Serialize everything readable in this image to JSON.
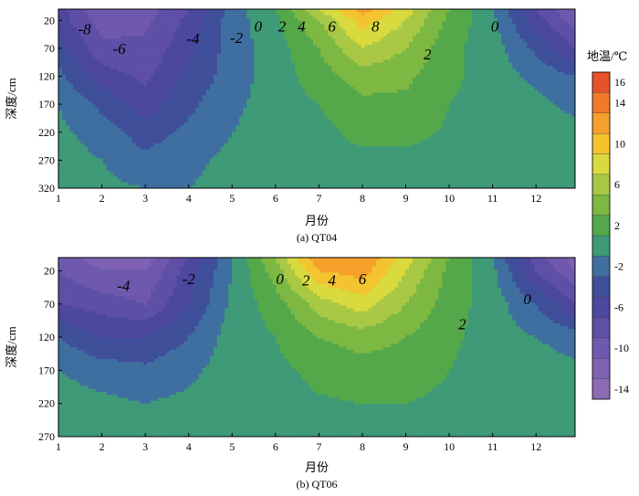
{
  "chart_data": [
    {
      "type": "contour",
      "caption": "(a) QT04",
      "xlabel": "月份",
      "ylabel": "深度/cm",
      "x_ticks": [
        "1",
        "2",
        "3",
        "4",
        "5",
        "6",
        "7",
        "8",
        "9",
        "10",
        "11",
        "12"
      ],
      "y_ticks": [
        "20",
        "70",
        "120",
        "170",
        "220",
        "270",
        "320"
      ],
      "xlim": [
        1,
        12.9
      ],
      "ylim": [
        320,
        0
      ],
      "y_inverted": true,
      "contour_labels": [
        "-8",
        "-6",
        "-4",
        "-2",
        "0",
        "2",
        "4",
        "6",
        "8",
        "0",
        "2"
      ],
      "x": [
        1,
        2,
        3,
        4,
        5,
        6,
        7,
        8,
        9,
        10,
        11,
        12,
        12.9
      ],
      "y": [
        0,
        20,
        70,
        120,
        170,
        220,
        270,
        320
      ],
      "z": [
        [
          -6,
          -11,
          -10,
          -7,
          -2,
          1,
          7,
          12,
          8,
          3,
          -1,
          -7,
          -11
        ],
        [
          -6,
          -10,
          -9.5,
          -6.5,
          -2,
          0.5,
          5,
          10,
          7,
          2.5,
          -0.5,
          -6,
          -10
        ],
        [
          -4,
          -8.5,
          -8.5,
          -5.5,
          -2,
          0,
          3,
          7,
          5,
          1.5,
          0,
          -3.5,
          -7
        ],
        [
          -2.5,
          -6,
          -7.5,
          -4.5,
          -2,
          0,
          2,
          4,
          3.5,
          1.5,
          0,
          -1.5,
          -3
        ],
        [
          -1,
          -3.5,
          -6,
          -3.5,
          -1.5,
          0,
          1,
          2.5,
          2.5,
          1,
          0,
          -0.5,
          -1.5
        ],
        [
          -0.5,
          -2,
          -4,
          -2.5,
          -1,
          0,
          0.5,
          1.5,
          1.5,
          0.8,
          0,
          0,
          -0.5
        ],
        [
          0,
          -1,
          -2.5,
          -1.5,
          -0.5,
          0,
          0.3,
          0.6,
          0.6,
          0.3,
          0,
          0,
          0
        ],
        [
          0,
          -0.5,
          -1,
          -1,
          -0.3,
          0,
          0.1,
          0.2,
          0.2,
          0.1,
          0,
          0,
          0
        ]
      ]
    },
    {
      "type": "contour",
      "caption": "(b) QT06",
      "xlabel": "月份",
      "ylabel": "深度/cm",
      "x_ticks": [
        "1",
        "2",
        "3",
        "4",
        "5",
        "6",
        "7",
        "8",
        "9",
        "10",
        "11",
        "12"
      ],
      "y_ticks": [
        "20",
        "70",
        "120",
        "170",
        "220",
        "270"
      ],
      "xlim": [
        1,
        12.9
      ],
      "ylim": [
        270,
        0
      ],
      "y_inverted": true,
      "contour_labels": [
        "-4",
        "-2",
        "0",
        "2",
        "4",
        "6",
        "2",
        "0"
      ],
      "x": [
        1,
        2,
        3,
        4,
        5,
        6,
        7,
        8,
        9,
        10,
        11,
        12,
        12.9
      ],
      "y": [
        0,
        20,
        70,
        120,
        170,
        220,
        270
      ],
      "z": [
        [
          -10,
          -12,
          -12,
          -7,
          -1,
          5,
          13,
          13,
          8,
          3,
          -1,
          -8,
          -12
        ],
        [
          -9,
          -11,
          -11,
          -6,
          -1,
          4,
          11,
          12,
          7,
          2.5,
          -0.5,
          -7,
          -11
        ],
        [
          -7,
          -8,
          -9,
          -5,
          -0.5,
          2,
          6,
          8,
          5,
          2,
          0,
          -3,
          -7
        ],
        [
          -3,
          -5,
          -5,
          -3,
          0,
          1,
          3,
          4,
          3,
          1.5,
          0,
          -1,
          -2
        ],
        [
          -1,
          -2,
          -2.5,
          -1.5,
          0,
          0.5,
          1.5,
          2,
          2,
          1,
          0,
          0,
          -0.5
        ],
        [
          0,
          -0.5,
          -1,
          -0.5,
          0,
          0.3,
          0.8,
          1,
          1,
          0.6,
          0,
          0,
          0
        ],
        [
          0,
          0,
          -0.3,
          0,
          0,
          0.1,
          0.3,
          0.4,
          0.4,
          0.2,
          0,
          0,
          0
        ]
      ]
    }
  ],
  "colorbar": {
    "title": "地温/℃",
    "ticks": [
      "16",
      "14",
      "10",
      "6",
      "2",
      "-2",
      "-6",
      "-10",
      "-14"
    ],
    "levels": [
      -15,
      -13,
      -11,
      -9,
      -7,
      -5,
      -3,
      -1,
      1,
      3,
      5,
      7,
      9,
      11,
      13,
      15,
      17
    ],
    "colors": [
      "#8E6BB7",
      "#7F62B3",
      "#6F59AE",
      "#5E4FA7",
      "#4C479F",
      "#3F4F9A",
      "#3F6FA0",
      "#3E9A77",
      "#54A84A",
      "#7DB843",
      "#A9C845",
      "#D9DA3E",
      "#F4C430",
      "#F6A02C",
      "#F07A2A",
      "#E8512A",
      "#E02C2C"
    ]
  }
}
